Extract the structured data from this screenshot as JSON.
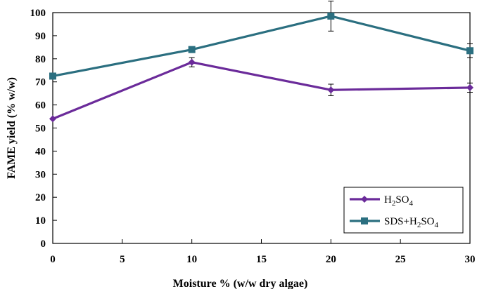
{
  "chart_data": {
    "type": "line",
    "xlabel": "Moisture % (w/w dry algae)",
    "ylabel": "FAME yield (% w/w)",
    "xlim": [
      0,
      30
    ],
    "ylim": [
      0,
      100
    ],
    "xticks": [
      0,
      5,
      10,
      15,
      20,
      25,
      30
    ],
    "yticks": [
      0,
      10,
      20,
      30,
      40,
      50,
      60,
      70,
      80,
      90,
      100
    ],
    "grid": false,
    "legend_position": "bottom-right",
    "series": [
      {
        "name": "H2SO4",
        "label_base": "H",
        "label_sub1": "2",
        "label_mid": "SO",
        "label_sub2": "4",
        "color": "#6b2b9a",
        "marker": "diamond",
        "x": [
          0,
          10,
          20,
          30
        ],
        "y": [
          54,
          78.5,
          66.5,
          67.5
        ],
        "error": [
          0,
          2,
          2.5,
          2
        ]
      },
      {
        "name": "SDS+H2SO4",
        "label_base": "SDS+H",
        "label_sub1": "2",
        "label_mid": "SO",
        "label_sub2": "4",
        "color": "#2b6f80",
        "marker": "square",
        "x": [
          0,
          10,
          20,
          30
        ],
        "y": [
          72.5,
          84,
          98.5,
          83.5
        ],
        "error": [
          0,
          0,
          6.5,
          3
        ]
      }
    ]
  }
}
